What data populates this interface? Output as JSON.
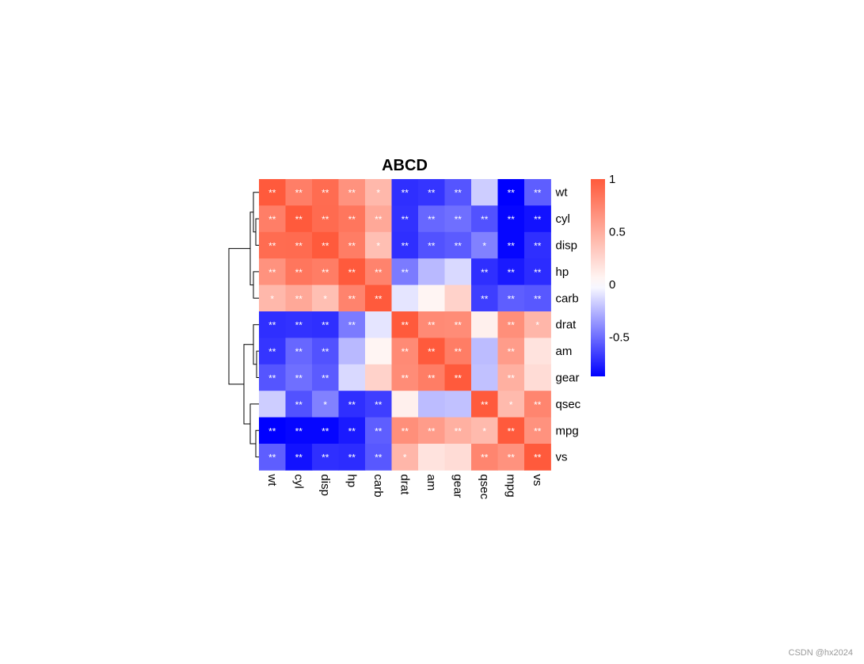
{
  "chart_data": {
    "type": "heatmap",
    "title": "ABCD",
    "rows": [
      "wt",
      "cyl",
      "disp",
      "hp",
      "carb",
      "drat",
      "am",
      "gear",
      "qsec",
      "mpg",
      "vs"
    ],
    "columns": [
      "wt",
      "cyl",
      "disp",
      "hp",
      "carb",
      "drat",
      "am",
      "gear",
      "qsec",
      "mpg",
      "vs"
    ],
    "values": [
      [
        1.0,
        0.78,
        0.89,
        0.66,
        0.43,
        -0.71,
        -0.69,
        -0.58,
        -0.17,
        -0.87,
        -0.55
      ],
      [
        0.78,
        1.0,
        0.9,
        0.83,
        0.53,
        -0.7,
        -0.52,
        -0.49,
        -0.59,
        -0.85,
        -0.81
      ],
      [
        0.89,
        0.9,
        1.0,
        0.79,
        0.39,
        -0.71,
        -0.59,
        -0.56,
        -0.43,
        -0.85,
        -0.71
      ],
      [
        0.66,
        0.83,
        0.79,
        1.0,
        0.75,
        -0.45,
        -0.24,
        -0.13,
        -0.71,
        -0.78,
        -0.72
      ],
      [
        0.43,
        0.53,
        0.39,
        0.75,
        1.0,
        -0.09,
        0.06,
        0.27,
        -0.66,
        -0.55,
        -0.57
      ],
      [
        -0.71,
        -0.7,
        -0.71,
        -0.45,
        -0.09,
        1.0,
        0.71,
        0.7,
        0.09,
        0.68,
        0.44
      ],
      [
        -0.69,
        -0.52,
        -0.59,
        -0.24,
        0.06,
        0.71,
        1.0,
        0.79,
        -0.23,
        0.6,
        0.17
      ],
      [
        -0.58,
        -0.49,
        -0.56,
        -0.13,
        0.27,
        0.7,
        0.79,
        1.0,
        -0.21,
        0.48,
        0.21
      ],
      [
        -0.17,
        -0.59,
        -0.43,
        -0.71,
        -0.66,
        0.09,
        -0.23,
        -0.21,
        1.0,
        0.42,
        0.74
      ],
      [
        -0.87,
        -0.85,
        -0.85,
        -0.78,
        -0.55,
        0.68,
        0.6,
        0.48,
        0.42,
        1.0,
        0.66
      ],
      [
        -0.55,
        -0.81,
        -0.71,
        -0.72,
        -0.57,
        0.44,
        0.17,
        0.21,
        0.74,
        0.66,
        1.0
      ]
    ],
    "significance": [
      [
        "**",
        "**",
        "**",
        "**",
        "*",
        "**",
        "**",
        "**",
        "",
        "**",
        "**"
      ],
      [
        "**",
        "**",
        "**",
        "**",
        "**",
        "**",
        "**",
        "**",
        "**",
        "**",
        "**"
      ],
      [
        "**",
        "**",
        "**",
        "**",
        "*",
        "**",
        "**",
        "**",
        "*",
        "**",
        "**"
      ],
      [
        "**",
        "**",
        "**",
        "**",
        "**",
        "**",
        "",
        "",
        "**",
        "**",
        "**"
      ],
      [
        "*",
        "**",
        "*",
        "**",
        "**",
        "",
        "",
        "",
        "**",
        "**",
        "**"
      ],
      [
        "**",
        "**",
        "**",
        "**",
        "",
        "**",
        "**",
        "**",
        "",
        "**",
        "*"
      ],
      [
        "**",
        "**",
        "**",
        "",
        "",
        "**",
        "**",
        "**",
        "",
        "**",
        ""
      ],
      [
        "**",
        "**",
        "**",
        "",
        "",
        "**",
        "**",
        "**",
        "",
        "**",
        ""
      ],
      [
        "",
        "**",
        "*",
        "**",
        "**",
        "",
        "",
        "",
        "**",
        "*",
        "**"
      ],
      [
        "**",
        "**",
        "**",
        "**",
        "**",
        "**",
        "**",
        "**",
        "*",
        "**",
        "**"
      ],
      [
        "**",
        "**",
        "**",
        "**",
        "**",
        "*",
        "",
        "",
        "**",
        "**",
        "**"
      ]
    ],
    "legend": {
      "ticks": [
        1,
        0.5,
        0,
        -0.5
      ],
      "tick_labels": [
        "1",
        "0.5",
        "0",
        "-0.5"
      ],
      "range": [
        -0.87,
        1
      ],
      "colors": {
        "low": "#0000FF",
        "mid": "#FFFFFF",
        "high": "#FF5A3C"
      }
    },
    "row_dendrogram": true
  },
  "watermark": "CSDN @hx2024"
}
